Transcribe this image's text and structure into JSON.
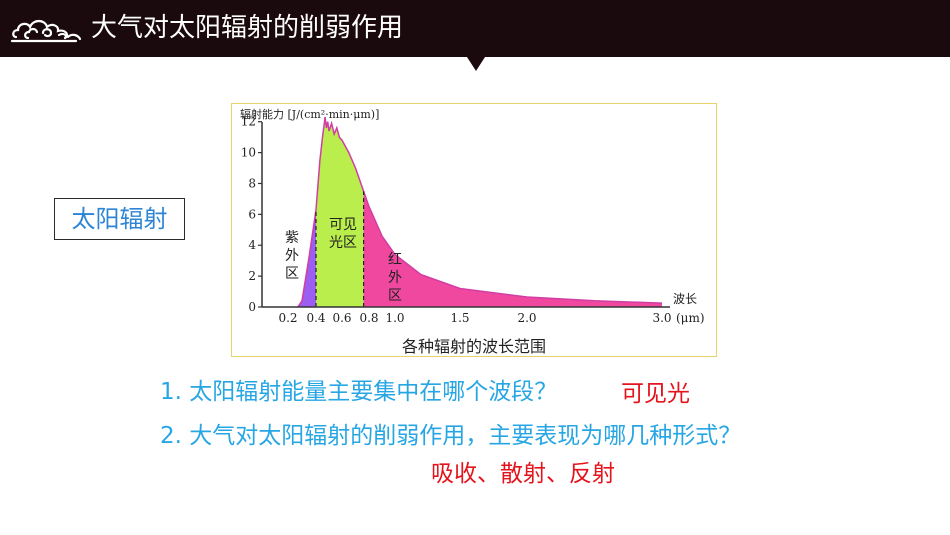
{
  "header": {
    "title": "大气对太阳辐射的削弱作用"
  },
  "label": "太阳辐射",
  "questions": [
    "1. 太阳辐射能量主要集中在哪个波段？",
    "2. 大气对太阳辐射的削弱作用，主要表现为哪几种形式？"
  ],
  "answers": [
    "可见光",
    "吸收、散射、反射"
  ],
  "chart_data": {
    "type": "area",
    "ylabel": "辐射能力 [J/(cm²·min·μm)]",
    "xlabel": "波长",
    "x_unit": "(μm)",
    "caption": "各种辐射的波长范围",
    "y_ticks": [
      "0",
      "2",
      "4",
      "6",
      "8",
      "10",
      "12"
    ],
    "x_ticks": [
      "0.2",
      "0.4",
      "0.6",
      "0.8",
      "1.0",
      "1.5",
      "2.0",
      "3.0"
    ],
    "ylim": [
      0,
      12.5
    ],
    "regions": [
      {
        "name": "紫外区",
        "range": [
          0.2,
          0.4
        ],
        "color": "#9b5ef0"
      },
      {
        "name": "可见光区",
        "range": [
          0.4,
          0.76
        ],
        "color": "#b9ee4c"
      },
      {
        "name": "红外区",
        "range": [
          0.76,
          3.0
        ],
        "color": "#f0479f"
      }
    ],
    "curve_x": [
      0.27,
      0.3,
      0.35,
      0.4,
      0.43,
      0.45,
      0.47,
      0.48,
      0.49,
      0.5,
      0.52,
      0.54,
      0.56,
      0.58,
      0.6,
      0.65,
      0.7,
      0.76,
      0.8,
      0.9,
      1.0,
      1.2,
      1.5,
      2.0,
      2.5,
      3.0
    ],
    "curve_y": [
      0.0,
      0.4,
      3.2,
      6.3,
      9.5,
      11.0,
      12.3,
      11.6,
      12.0,
      11.4,
      11.9,
      11.2,
      11.6,
      11.0,
      10.8,
      10.0,
      9.0,
      7.5,
      6.5,
      4.6,
      3.4,
      2.1,
      1.2,
      0.65,
      0.4,
      0.25
    ]
  },
  "colors": {
    "header_bg": "#1b0a0d",
    "question": "#27a6e4",
    "answer": "#e3141c",
    "label": "#2e85d6"
  }
}
